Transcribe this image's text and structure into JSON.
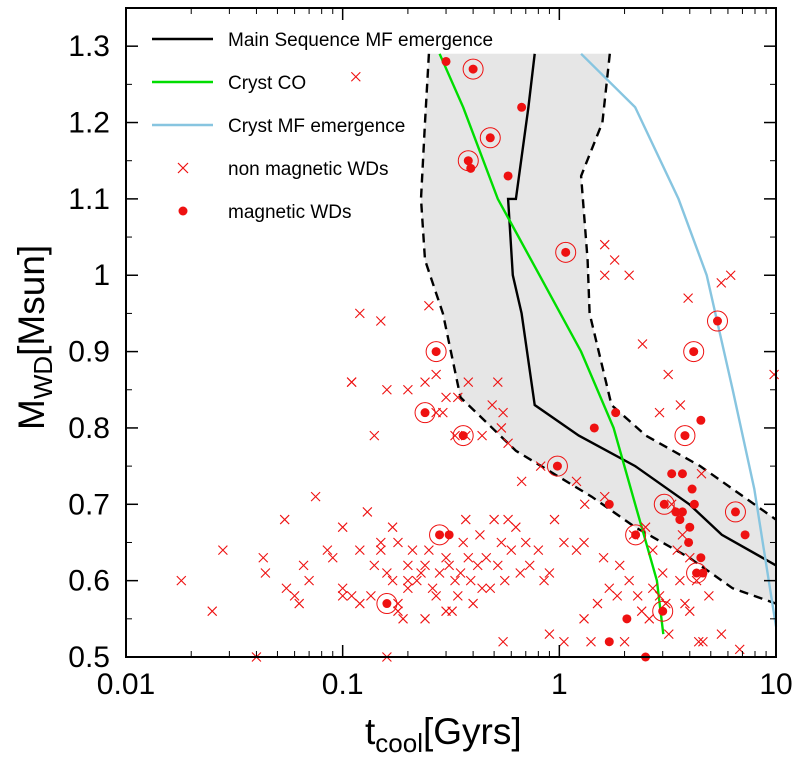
{
  "chart_data": {
    "type": "scatter",
    "xlabel_main": "t",
    "xlabel_sub": "cool",
    "xlabel_unit": "[Gyrs]",
    "ylabel_main": "M",
    "ylabel_sub": "WD",
    "ylabel_unit": "[Msun]",
    "xscale": "log",
    "xlim": [
      0.01,
      10
    ],
    "ylim": [
      0.5,
      1.35
    ],
    "x_ticks": [
      0.01,
      0.1,
      1,
      10
    ],
    "x_tick_labels": [
      "0.01",
      "0.1",
      "1",
      "10"
    ],
    "y_ticks": [
      0.5,
      0.6,
      0.7,
      0.8,
      0.9,
      1.0,
      1.1,
      1.2,
      1.3
    ],
    "y_tick_labels": [
      "0.5",
      "0.6",
      "0.7",
      "0.8",
      "0.9",
      "1",
      "1.1",
      "1.2",
      "1.3"
    ],
    "legend_position": "top-left",
    "colors": {
      "main": "#000000",
      "cryst_co": "#00dd00",
      "cryst_mf": "#87c5e0",
      "points": "#ee1111",
      "band": "#e6e6e6"
    },
    "legend": [
      {
        "key": "ms",
        "label": "Main Sequence MF emergence"
      },
      {
        "key": "co",
        "label": "Cryst CO"
      },
      {
        "key": "mf",
        "label": "Cryst MF emergence"
      },
      {
        "key": "nm",
        "label": "non magnetic WDs"
      },
      {
        "key": "m",
        "label": "magnetic WDs"
      }
    ],
    "main_sequence": {
      "center": [
        [
          0.77,
          1.29
        ],
        [
          0.72,
          1.22
        ],
        [
          0.63,
          1.1
        ],
        [
          0.58,
          1.1
        ],
        [
          0.61,
          1.0
        ],
        [
          0.67,
          0.95
        ],
        [
          0.77,
          0.83
        ],
        [
          1.23,
          0.79
        ],
        [
          2.24,
          0.75
        ],
        [
          3.98,
          0.7
        ],
        [
          5.62,
          0.66
        ],
        [
          10.0,
          0.62
        ]
      ],
      "upper": [
        [
          1.71,
          1.29
        ],
        [
          1.58,
          1.2
        ],
        [
          1.26,
          1.13
        ],
        [
          1.35,
          1.02
        ],
        [
          1.38,
          0.95
        ],
        [
          1.74,
          0.83
        ],
        [
          2.51,
          0.79
        ],
        [
          4.47,
          0.75
        ],
        [
          10.0,
          0.68
        ]
      ],
      "lower": [
        [
          0.25,
          1.29
        ],
        [
          0.24,
          1.2
        ],
        [
          0.23,
          1.1
        ],
        [
          0.24,
          1.02
        ],
        [
          0.29,
          0.95
        ],
        [
          0.35,
          0.84
        ],
        [
          0.63,
          0.77
        ],
        [
          1.41,
          0.71
        ],
        [
          2.24,
          0.67
        ],
        [
          3.98,
          0.63
        ],
        [
          6.31,
          0.59
        ],
        [
          10.0,
          0.57
        ]
      ]
    },
    "cryst_co": [
      [
        0.28,
        1.29
      ],
      [
        0.36,
        1.22
      ],
      [
        0.52,
        1.1
      ],
      [
        0.81,
        1.0
      ],
      [
        1.26,
        0.9
      ],
      [
        1.78,
        0.8
      ],
      [
        2.24,
        0.7
      ],
      [
        2.82,
        0.6
      ],
      [
        3.02,
        0.53
      ]
    ],
    "cryst_mf": [
      [
        1.26,
        1.29
      ],
      [
        2.24,
        1.22
      ],
      [
        3.55,
        1.1
      ],
      [
        4.79,
        1.0
      ],
      [
        6.31,
        0.85
      ],
      [
        7.94,
        0.72
      ],
      [
        10.0,
        0.54
      ]
    ],
    "non_magnetic": [
      [
        0.115,
        1.26
      ],
      [
        0.12,
        0.95
      ],
      [
        0.15,
        0.94
      ],
      [
        0.25,
        0.96
      ],
      [
        0.34,
        0.84
      ],
      [
        0.11,
        0.86
      ],
      [
        0.11,
        0.86
      ],
      [
        0.14,
        0.79
      ],
      [
        0.16,
        0.85
      ],
      [
        0.2,
        0.85
      ],
      [
        0.24,
        0.86
      ],
      [
        0.27,
        0.87
      ],
      [
        0.3,
        0.84
      ],
      [
        0.27,
        0.82
      ],
      [
        0.29,
        0.82
      ],
      [
        0.38,
        0.86
      ],
      [
        0.52,
        0.86
      ],
      [
        0.49,
        0.83
      ],
      [
        0.55,
        0.82
      ],
      [
        0.58,
        0.78
      ],
      [
        0.44,
        0.79
      ],
      [
        0.54,
        0.8
      ],
      [
        0.33,
        0.79
      ],
      [
        0.37,
        0.79
      ],
      [
        0.67,
        0.73
      ],
      [
        0.82,
        0.75
      ],
      [
        1.2,
        0.73
      ],
      [
        1.31,
        0.7
      ],
      [
        1.62,
        0.71
      ],
      [
        1.62,
        1.0
      ],
      [
        1.62,
        1.04
      ],
      [
        1.8,
        1.02
      ],
      [
        2.1,
        1.0
      ],
      [
        2.42,
        0.91
      ],
      [
        2.9,
        0.82
      ],
      [
        3.18,
        0.87
      ],
      [
        3.62,
        0.83
      ],
      [
        4.53,
        0.74
      ],
      [
        6.18,
        1.0
      ],
      [
        5.59,
        0.99
      ],
      [
        3.93,
        0.97
      ],
      [
        9.8,
        0.87
      ],
      [
        0.018,
        0.6
      ],
      [
        0.025,
        0.56
      ],
      [
        0.028,
        0.64
      ],
      [
        0.04,
        0.5
      ],
      [
        0.043,
        0.63
      ],
      [
        0.044,
        0.61
      ],
      [
        0.054,
        0.68
      ],
      [
        0.055,
        0.59
      ],
      [
        0.06,
        0.58
      ],
      [
        0.063,
        0.57
      ],
      [
        0.066,
        0.62
      ],
      [
        0.07,
        0.6
      ],
      [
        0.075,
        0.71
      ],
      [
        0.085,
        0.64
      ],
      [
        0.09,
        0.63
      ],
      [
        0.1,
        0.58
      ],
      [
        0.1,
        0.59
      ],
      [
        0.1,
        0.67
      ],
      [
        0.11,
        0.58
      ],
      [
        0.12,
        0.57
      ],
      [
        0.13,
        0.69
      ],
      [
        0.135,
        0.58
      ],
      [
        0.14,
        0.62
      ],
      [
        0.15,
        0.64
      ],
      [
        0.15,
        0.65
      ],
      [
        0.16,
        0.61
      ],
      [
        0.17,
        0.6
      ],
      [
        0.17,
        0.67
      ],
      [
        0.18,
        0.56
      ],
      [
        0.18,
        0.57
      ],
      [
        0.19,
        0.55
      ],
      [
        0.2,
        0.6
      ],
      [
        0.21,
        0.64
      ],
      [
        0.22,
        0.6
      ],
      [
        0.23,
        0.61
      ],
      [
        0.24,
        0.62
      ],
      [
        0.25,
        0.64
      ],
      [
        0.26,
        0.59
      ],
      [
        0.27,
        0.58
      ],
      [
        0.28,
        0.61
      ],
      [
        0.3,
        0.63
      ],
      [
        0.31,
        0.62
      ],
      [
        0.32,
        0.56
      ],
      [
        0.33,
        0.6
      ],
      [
        0.34,
        0.58
      ],
      [
        0.35,
        0.61
      ],
      [
        0.36,
        0.65
      ],
      [
        0.37,
        0.68
      ],
      [
        0.38,
        0.63
      ],
      [
        0.39,
        0.6
      ],
      [
        0.4,
        0.57
      ],
      [
        0.42,
        0.62
      ],
      [
        0.44,
        0.59
      ],
      [
        0.46,
        0.63
      ],
      [
        0.48,
        0.59
      ],
      [
        0.5,
        0.68
      ],
      [
        0.52,
        0.62
      ],
      [
        0.54,
        0.65
      ],
      [
        0.56,
        0.6
      ],
      [
        0.58,
        0.68
      ],
      [
        0.6,
        0.64
      ],
      [
        0.63,
        0.67
      ],
      [
        0.66,
        0.61
      ],
      [
        0.7,
        0.65
      ],
      [
        0.73,
        0.62
      ],
      [
        0.8,
        0.64
      ],
      [
        0.85,
        0.6
      ],
      [
        0.9,
        0.61
      ],
      [
        0.95,
        0.68
      ],
      [
        1.05,
        0.65
      ],
      [
        1.2,
        0.64
      ],
      [
        1.3,
        0.55
      ],
      [
        1.4,
        0.52
      ],
      [
        1.5,
        0.57
      ],
      [
        1.6,
        0.63
      ],
      [
        1.7,
        0.59
      ],
      [
        1.85,
        0.58
      ],
      [
        1.9,
        0.62
      ],
      [
        2.0,
        0.52
      ],
      [
        2.1,
        0.6
      ],
      [
        2.3,
        0.58
      ],
      [
        2.4,
        0.56
      ],
      [
        2.5,
        0.67
      ],
      [
        2.6,
        0.55
      ],
      [
        2.7,
        0.59
      ],
      [
        3.0,
        0.61
      ],
      [
        3.2,
        0.53
      ],
      [
        3.3,
        0.7
      ],
      [
        3.5,
        0.64
      ],
      [
        3.7,
        0.66
      ],
      [
        3.8,
        0.57
      ],
      [
        4.0,
        0.63
      ],
      [
        4.3,
        0.6
      ],
      [
        4.6,
        0.52
      ],
      [
        4.9,
        0.58
      ],
      [
        5.6,
        0.53
      ],
      [
        6.8,
        0.51
      ],
      [
        2.9,
        0.58
      ],
      [
        3.1,
        0.57
      ],
      [
        2.2,
        0.66
      ],
      [
        1.05,
        0.52
      ],
      [
        0.55,
        0.52
      ],
      [
        0.16,
        0.5
      ],
      [
        0.2,
        0.62
      ],
      [
        0.24,
        0.55
      ],
      [
        0.43,
        0.66
      ],
      [
        0.9,
        0.53
      ],
      [
        1.3,
        0.65
      ],
      [
        2.7,
        0.64
      ],
      [
        3.6,
        0.6
      ],
      [
        4.0,
        0.56
      ],
      [
        4.4,
        0.52
      ],
      [
        0.12,
        0.64
      ],
      [
        0.18,
        0.65
      ],
      [
        0.3,
        0.56
      ],
      [
        0.2,
        0.59
      ]
    ],
    "magnetic": [
      [
        0.3,
        1.28,
        false
      ],
      [
        0.4,
        1.27,
        true
      ],
      [
        0.67,
        1.22,
        false
      ],
      [
        0.48,
        1.18,
        true
      ],
      [
        0.38,
        1.15,
        true
      ],
      [
        0.39,
        1.14,
        false
      ],
      [
        0.58,
        1.13,
        false
      ],
      [
        1.07,
        1.03,
        true
      ],
      [
        5.37,
        0.94,
        true
      ],
      [
        0.27,
        0.9,
        true
      ],
      [
        4.17,
        0.9,
        true
      ],
      [
        0.24,
        0.82,
        true
      ],
      [
        1.82,
        0.82,
        false
      ],
      [
        4.5,
        0.81,
        false
      ],
      [
        1.45,
        0.8,
        false
      ],
      [
        3.8,
        0.79,
        true
      ],
      [
        0.36,
        0.79,
        true
      ],
      [
        0.98,
        0.75,
        true
      ],
      [
        3.3,
        0.74,
        false
      ],
      [
        3.7,
        0.74,
        false
      ],
      [
        4.1,
        0.72,
        false
      ],
      [
        1.7,
        0.7,
        false
      ],
      [
        3.05,
        0.7,
        true
      ],
      [
        4.2,
        0.7,
        false
      ],
      [
        3.45,
        0.69,
        false
      ],
      [
        3.7,
        0.69,
        false
      ],
      [
        6.5,
        0.69,
        true
      ],
      [
        3.6,
        0.68,
        false
      ],
      [
        4.0,
        0.67,
        false
      ],
      [
        0.28,
        0.66,
        true
      ],
      [
        0.31,
        0.66,
        false
      ],
      [
        2.25,
        0.66,
        true
      ],
      [
        7.2,
        0.66,
        false
      ],
      [
        3.95,
        0.65,
        false
      ],
      [
        4.5,
        0.63,
        false
      ],
      [
        4.3,
        0.61,
        true
      ],
      [
        4.6,
        0.61,
        false
      ],
      [
        0.16,
        0.57,
        true
      ],
      [
        3.0,
        0.56,
        true
      ],
      [
        2.05,
        0.55,
        false
      ],
      [
        1.7,
        0.52,
        false
      ],
      [
        2.5,
        0.5,
        false
      ]
    ]
  }
}
